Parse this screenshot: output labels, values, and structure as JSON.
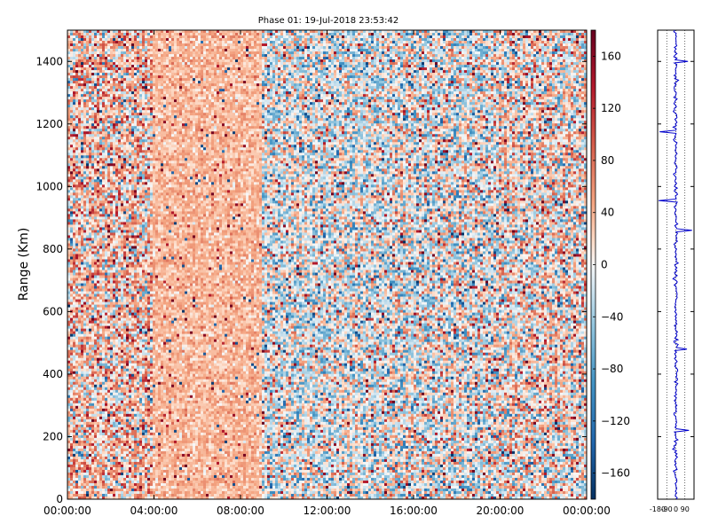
{
  "chart_data": {
    "type": "heatmap",
    "title": "Phase 01: 19-Jul-2018 23:53:42",
    "ylabel": "Range (Km)",
    "xlabel": "",
    "ylim": [
      0,
      1500
    ],
    "y_ticks": [
      0,
      200,
      400,
      600,
      800,
      1000,
      1200,
      1400
    ],
    "x_ticks": [
      "00:00:00",
      "04:00:00",
      "08:00:00",
      "12:00:00",
      "16:00:00",
      "20:00:00",
      "00:00:00"
    ],
    "x_range_hours": [
      0,
      24
    ],
    "colormap": {
      "name": "diverging red-blue",
      "range": [
        -180,
        180
      ],
      "ticks": [
        160,
        120,
        80,
        40,
        0,
        -40,
        -80,
        -120,
        -160
      ],
      "color_high": "#67001f",
      "color_mid": "#f7f7f7",
      "color_low": "#053061"
    },
    "value_pattern": {
      "description": "phase values scattered around zero; mostly positive near 00:00-09:00, near zero after 09:00, with sparse outliers",
      "bands": [
        {
          "from_hour": 0,
          "to_hour": 4,
          "mean": 25,
          "spread": 55
        },
        {
          "from_hour": 4,
          "to_hour": 9,
          "mean": 35,
          "spread": 18
        },
        {
          "from_hour": 9,
          "to_hour": 15,
          "mean": -10,
          "spread": 50
        },
        {
          "from_hour": 15,
          "to_hour": 20,
          "mean": -6,
          "spread": 55
        },
        {
          "from_hour": 20,
          "to_hour": 24,
          "mean": 8,
          "spread": 55
        }
      ]
    },
    "side_profile": {
      "type": "line",
      "line_color": "#0000cc",
      "x_ticks": [
        "-180",
        "-90",
        "0",
        "90"
      ],
      "xlim": [
        -180,
        180
      ],
      "gridlines_x": [
        -90,
        0,
        90
      ],
      "spikes": [
        {
          "range": 1400,
          "value": 120
        },
        {
          "range": 1175,
          "value": -160
        },
        {
          "range": 955,
          "value": -170
        },
        {
          "range": 860,
          "value": 160
        },
        {
          "range": 480,
          "value": 110
        },
        {
          "range": 220,
          "value": 130
        }
      ]
    }
  }
}
